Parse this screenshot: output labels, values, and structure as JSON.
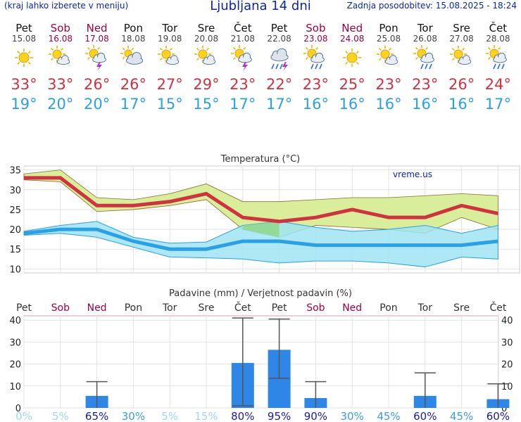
{
  "header": {
    "menu_hint": "(kraj lahko izberete v meniju)",
    "title": "Ljubljana 14 dni",
    "updated": "Zadnja posodobitev: 15.08.2025 - 18:24"
  },
  "days": [
    {
      "name": "Pet",
      "date": "15.08",
      "weekend": false,
      "icon": "sun-icon",
      "tmax": "33°",
      "tmin": "19°"
    },
    {
      "name": "Sob",
      "date": "16.08",
      "weekend": true,
      "icon": "sun-cloud-icon",
      "tmax": "33°",
      "tmin": "20°"
    },
    {
      "name": "Ned",
      "date": "17.08",
      "weekend": true,
      "icon": "sun-cloud-storm-icon",
      "tmax": "26°",
      "tmin": "20°"
    },
    {
      "name": "Pon",
      "date": "18.08",
      "weekend": false,
      "icon": "sun-cloudy-icon",
      "tmax": "26°",
      "tmin": "17°"
    },
    {
      "name": "Tor",
      "date": "19.08",
      "weekend": false,
      "icon": "sun-cloud-icon",
      "tmax": "27°",
      "tmin": "15°"
    },
    {
      "name": "Sre",
      "date": "20.08",
      "weekend": false,
      "icon": "sun-cloud-icon",
      "tmax": "29°",
      "tmin": "15°"
    },
    {
      "name": "Čet",
      "date": "21.08",
      "weekend": false,
      "icon": "sun-cloud-storm-icon",
      "tmax": "23°",
      "tmin": "17°"
    },
    {
      "name": "Pet",
      "date": "22.08",
      "weekend": false,
      "icon": "cloud-rain-storm-icon",
      "tmax": "22°",
      "tmin": "17°"
    },
    {
      "name": "Sob",
      "date": "23.08",
      "weekend": true,
      "icon": "sun-cloud-rain-icon",
      "tmax": "23°",
      "tmin": "16°"
    },
    {
      "name": "Ned",
      "date": "24.08",
      "weekend": true,
      "icon": "sun-icon",
      "tmax": "25°",
      "tmin": "16°"
    },
    {
      "name": "Pon",
      "date": "25.08",
      "weekend": false,
      "icon": "sun-cloud-icon",
      "tmax": "23°",
      "tmin": "16°"
    },
    {
      "name": "Tor",
      "date": "26.08",
      "weekend": false,
      "icon": "sun-cloud-rain-icon",
      "tmax": "23°",
      "tmin": "16°"
    },
    {
      "name": "Sre",
      "date": "27.08",
      "weekend": false,
      "icon": "sun-cloud-icon",
      "tmax": "26°",
      "tmin": "16°"
    },
    {
      "name": "Čet",
      "date": "28.08",
      "weekend": false,
      "icon": "sun-cloud-rain-icon",
      "tmax": "24°",
      "tmin": "17°"
    }
  ],
  "colors": {
    "tmax": "#d03240",
    "tmin": "#2aa0e6",
    "weekend": "#a00045",
    "bar": "#2e86e6",
    "band_max": "#d8ee9a",
    "band_min": "#9fe4f2",
    "overlap": "#8fd68a"
  },
  "chart_data": [
    {
      "type": "line",
      "title": "Temperatura (°C)",
      "watermark": "vreme.us",
      "x": [
        "15.08",
        "16.08",
        "17.08",
        "18.08",
        "19.08",
        "20.08",
        "21.08",
        "22.08",
        "23.08",
        "24.08",
        "25.08",
        "26.08",
        "27.08",
        "28.08"
      ],
      "ylim": [
        9,
        36
      ],
      "yticks": [
        10,
        15,
        20,
        25,
        30,
        35
      ],
      "series": [
        {
          "values": [
            33,
            33,
            26,
            26,
            27,
            29,
            23,
            22,
            23,
            25,
            23,
            23,
            26,
            24
          ],
          "band_low": [
            32.5,
            32,
            24.5,
            25,
            26,
            27.5,
            20,
            18,
            21,
            20.5,
            20,
            19,
            23,
            20
          ],
          "band_high": [
            34,
            35,
            28,
            27.5,
            29,
            31.5,
            27,
            27,
            27.5,
            28,
            28,
            28.5,
            29,
            28.5
          ]
        },
        {
          "values": [
            19,
            20,
            20,
            17,
            15,
            15,
            17,
            17,
            16,
            16,
            16,
            16,
            16,
            17
          ],
          "band_low": [
            18.5,
            19,
            18,
            15.5,
            13,
            12.8,
            12.5,
            11.5,
            12,
            12,
            11.5,
            10.5,
            13,
            12.5
          ],
          "band_high": [
            19.5,
            21,
            22,
            18,
            16.5,
            16.8,
            21,
            22,
            20.5,
            19.5,
            20,
            21,
            19,
            21
          ]
        }
      ]
    },
    {
      "type": "bar",
      "title": "Padavine (mm) / Verjetnost padavin (%)",
      "categories": [
        "Pet",
        "Sob",
        "Ned",
        "Pon",
        "Tor",
        "Sre",
        "Čet",
        "Pet",
        "Sob",
        "Ned",
        "Pon",
        "Tor",
        "Sre",
        "Čet"
      ],
      "values": [
        0,
        0,
        5.5,
        0,
        0,
        0,
        20.5,
        26.5,
        4.5,
        0,
        0,
        5.5,
        0,
        4
      ],
      "err_low": [
        0,
        0,
        0,
        0,
        0,
        0,
        1,
        13.5,
        0,
        0,
        0,
        0,
        0,
        0
      ],
      "err_high": [
        0,
        0,
        12,
        0,
        0,
        0,
        41,
        40.5,
        12,
        0,
        0,
        16,
        0,
        11
      ],
      "probability": [
        "0%",
        "5%",
        "65%",
        "30%",
        "5%",
        "15%",
        "80%",
        "95%",
        "90%",
        "30%",
        "45%",
        "60%",
        "45%",
        "60%"
      ],
      "ylim": [
        0,
        42
      ],
      "yticks": [
        0,
        10,
        20,
        30,
        40
      ]
    }
  ]
}
